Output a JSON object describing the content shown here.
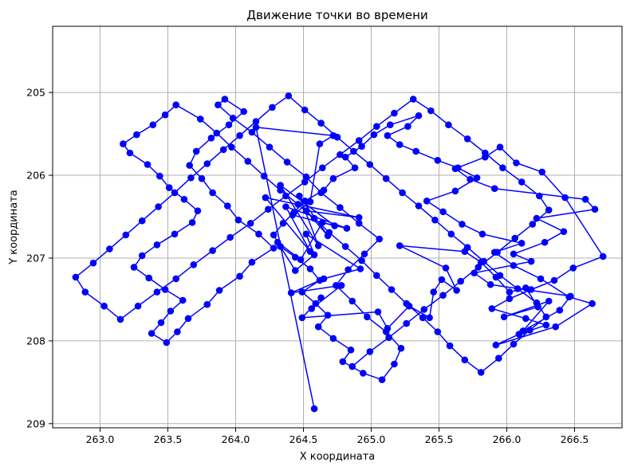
{
  "chart_data": {
    "type": "line",
    "title": "Движение точки во времени",
    "xlabel": "X координата",
    "ylabel": "Y координата",
    "xlim": [
      262.65,
      266.85
    ],
    "ylim": [
      209.05,
      204.2
    ],
    "y_inverted": true,
    "x_ticks": [
      "263.0",
      "263.5",
      "264.0",
      "264.5",
      "265.0",
      "265.5",
      "266.0",
      "266.5"
    ],
    "y_ticks": [
      "205",
      "206",
      "207",
      "208",
      "209"
    ],
    "grid": true,
    "line_color": "#0000ff",
    "marker": "circle",
    "series": [
      {
        "x": [
          264.58,
          264.15,
          264.72,
          264.62,
          264.55,
          264.42,
          264.73,
          264.33,
          264.61,
          264.47,
          264.68,
          264.52,
          264.91,
          264.22,
          264.55,
          264.37,
          264.82,
          264.64,
          264.48,
          264.31,
          264.44,
          264.58,
          264.52,
          264.92,
          264.65,
          264.41,
          264.78,
          264.56,
          264.63,
          264.49,
          265.05,
          265.12,
          265.28,
          265.43,
          265.46,
          265.52,
          265.63,
          265.55,
          265.21,
          265.69,
          265.81,
          265.92,
          266.02,
          266.14,
          266.23,
          265.98,
          266.31,
          266.12,
          266.39,
          266.47,
          265.88,
          265.76,
          266.18,
          266.05,
          266.28,
          266.42,
          266.22,
          266.65,
          266.58,
          265.91,
          265.73,
          265.62,
          265.84,
          265.95,
          266.07,
          266.26,
          266.43,
          266.71,
          266.49,
          266.35,
          266.18,
          266.02,
          265.89,
          266.14,
          266.29,
          266.09,
          265.92,
          266.36,
          266.63,
          266.46,
          266.25,
          266.05,
          265.91,
          266.11,
          265.82,
          265.67,
          265.53,
          265.41,
          265.62,
          265.78,
          265.64,
          265.49,
          265.33,
          265.21,
          265.12,
          265.27,
          265.35,
          265.14,
          265.02,
          264.93,
          264.81,
          264.88,
          264.72,
          264.65,
          264.51,
          264.43,
          264.35,
          264.28,
          264.33,
          264.44,
          264.55,
          264.62,
          264.49,
          264.59,
          264.68,
          264.61,
          264.72,
          264.85,
          264.79,
          264.94,
          265.08,
          265.17,
          265.22,
          265.11,
          264.97,
          264.86,
          264.74,
          264.83,
          264.95,
          265.06,
          264.91,
          264.77,
          264.63,
          264.52,
          264.38,
          264.25,
          264.12,
          263.98,
          263.87,
          263.92,
          264.06,
          263.95,
          263.82,
          263.71,
          263.66,
          263.75,
          263.83,
          263.94,
          264.02,
          264.17,
          264.28,
          264.12,
          264.03,
          263.88,
          263.79,
          263.65,
          263.57,
          263.49,
          263.38,
          263.45,
          263.52,
          263.61,
          263.48,
          263.36,
          263.25,
          263.31,
          263.42,
          263.55,
          263.68,
          263.72,
          263.62,
          263.51,
          263.44,
          263.35,
          263.22,
          263.17,
          263.27,
          263.39,
          263.48,
          263.56,
          263.74,
          263.86,
          263.97,
          264.09,
          264.21,
          264.33,
          264.46,
          264.58,
          264.69,
          264.81,
          264.93,
          265.04,
          265.15,
          265.26,
          265.38,
          265.49,
          265.58,
          265.69,
          265.81,
          265.94,
          266.05,
          266.17,
          266.29,
          266.22,
          266.08,
          265.95,
          265.83,
          265.71,
          265.59,
          265.47,
          265.35,
          265.23,
          265.11,
          264.99,
          264.87,
          264.75,
          264.63,
          264.51,
          264.39,
          264.27,
          264.15,
          264.03,
          263.91,
          263.79,
          263.67,
          263.55,
          263.43,
          263.31,
          263.19,
          263.07,
          262.95,
          262.82,
          262.89,
          263.03,
          263.15,
          263.28,
          263.42,
          263.56,
          263.69,
          263.83,
          263.96,
          264.11,
          264.24,
          264.37,
          264.51,
          264.64,
          264.77,
          264.91,
          265.04,
          265.17,
          265.31,
          265.44,
          265.57,
          265.71,
          265.84,
          265.97,
          266.11,
          266.24,
          266.31,
          266.19,
          266.06,
          265.93,
          265.79,
          265.66,
          265.53,
          265.39,
          265.26,
          265.13,
          264.99,
          264.86
        ],
        "y": [
          208.82,
          205.42,
          205.52,
          205.62,
          206.32,
          206.48,
          206.61,
          206.12,
          206.85,
          206.25,
          206.73,
          206.43,
          206.51,
          206.27,
          206.92,
          206.38,
          206.64,
          206.57,
          207.02,
          206.81,
          207.15,
          206.96,
          206.71,
          207.13,
          207.25,
          207.42,
          207.33,
          207.61,
          207.48,
          207.72,
          207.65,
          207.85,
          207.58,
          207.72,
          207.41,
          207.26,
          207.39,
          207.12,
          206.85,
          206.92,
          207.05,
          207.23,
          207.41,
          207.36,
          207.59,
          207.71,
          207.52,
          207.88,
          207.63,
          207.46,
          207.32,
          207.18,
          207.04,
          206.95,
          206.81,
          206.68,
          206.52,
          206.41,
          206.29,
          206.16,
          206.05,
          205.92,
          205.78,
          205.66,
          205.85,
          205.96,
          206.27,
          206.98,
          207.12,
          207.27,
          207.38,
          207.49,
          207.61,
          207.73,
          207.81,
          207.92,
          208.05,
          207.83,
          207.55,
          207.47,
          207.25,
          207.09,
          206.93,
          206.82,
          206.71,
          206.59,
          206.44,
          206.31,
          206.19,
          206.03,
          205.91,
          205.82,
          205.71,
          205.63,
          205.52,
          205.41,
          205.28,
          205.39,
          205.51,
          205.65,
          205.78,
          205.91,
          206.04,
          206.18,
          206.31,
          206.45,
          206.58,
          206.72,
          206.86,
          206.99,
          207.13,
          207.27,
          207.41,
          207.55,
          207.69,
          207.83,
          207.97,
          208.11,
          208.25,
          208.39,
          208.47,
          208.28,
          208.09,
          207.89,
          207.71,
          207.52,
          207.33,
          207.14,
          206.95,
          206.77,
          206.58,
          206.39,
          206.21,
          206.02,
          205.84,
          205.66,
          205.48,
          205.31,
          205.15,
          205.08,
          205.23,
          205.39,
          205.55,
          205.71,
          205.88,
          206.04,
          206.21,
          206.37,
          206.54,
          206.71,
          206.88,
          207.05,
          207.22,
          207.39,
          207.56,
          207.73,
          207.89,
          208.02,
          207.91,
          207.78,
          207.64,
          207.51,
          207.38,
          207.24,
          207.11,
          206.97,
          206.84,
          206.71,
          206.57,
          206.43,
          206.29,
          206.15,
          206.01,
          205.87,
          205.73,
          205.62,
          205.51,
          205.39,
          205.27,
          205.15,
          205.32,
          205.49,
          205.66,
          205.83,
          206.01,
          206.18,
          206.35,
          206.52,
          206.69,
          206.86,
          207.03,
          207.21,
          207.38,
          207.55,
          207.72,
          207.89,
          208.06,
          208.23,
          208.38,
          208.21,
          208.04,
          207.87,
          207.71,
          207.54,
          207.37,
          207.21,
          207.04,
          206.87,
          206.71,
          206.54,
          206.37,
          206.21,
          206.04,
          205.87,
          205.71,
          205.54,
          205.37,
          205.21,
          205.04,
          205.18,
          205.35,
          205.52,
          205.69,
          205.86,
          206.03,
          206.21,
          206.38,
          206.55,
          206.72,
          206.89,
          207.06,
          207.23,
          207.41,
          207.58,
          207.74,
          207.58,
          207.41,
          207.25,
          207.08,
          206.91,
          206.75,
          206.58,
          206.41,
          206.25,
          206.08,
          205.91,
          205.75,
          205.58,
          205.41,
          205.25,
          205.08,
          205.22,
          205.39,
          205.56,
          205.73,
          205.91,
          206.08,
          206.25,
          206.42,
          206.59,
          206.76,
          206.93,
          207.11,
          207.28,
          207.45,
          207.62,
          207.79,
          207.96,
          208.13,
          208.31
        ]
      }
    ]
  }
}
